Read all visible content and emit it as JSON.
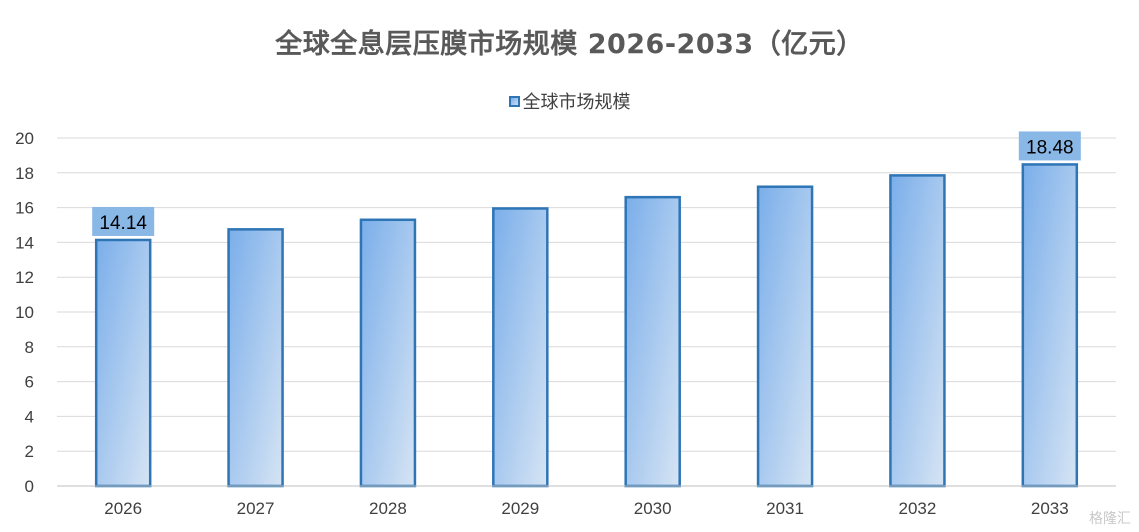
{
  "chart_data": {
    "type": "bar",
    "title": "全球全息层压膜市场规模 2026-2033（亿元）",
    "categories": [
      "2026",
      "2027",
      "2028",
      "2029",
      "2030",
      "2031",
      "2032",
      "2033"
    ],
    "series": [
      {
        "name": "全球市场规模",
        "values": [
          14.14,
          14.75,
          15.3,
          15.95,
          16.6,
          17.2,
          17.85,
          18.48
        ]
      }
    ],
    "data_labels": [
      {
        "category": "2026",
        "text": "14.14"
      },
      {
        "category": "2033",
        "text": "18.48"
      }
    ],
    "ylim": [
      0,
      20
    ],
    "yticks": [
      0,
      2,
      4,
      6,
      8,
      10,
      12,
      14,
      16,
      18,
      20
    ],
    "grid": true,
    "legend_position": "top",
    "colors": {
      "bar_border": "#2e75b6",
      "bar_fill_top": "#7aaeea",
      "bar_fill_bottom": "#d6e4f4",
      "label_bg": "#8ab8e6",
      "grid": "#d9d9d9"
    }
  },
  "watermark": "格隆汇"
}
